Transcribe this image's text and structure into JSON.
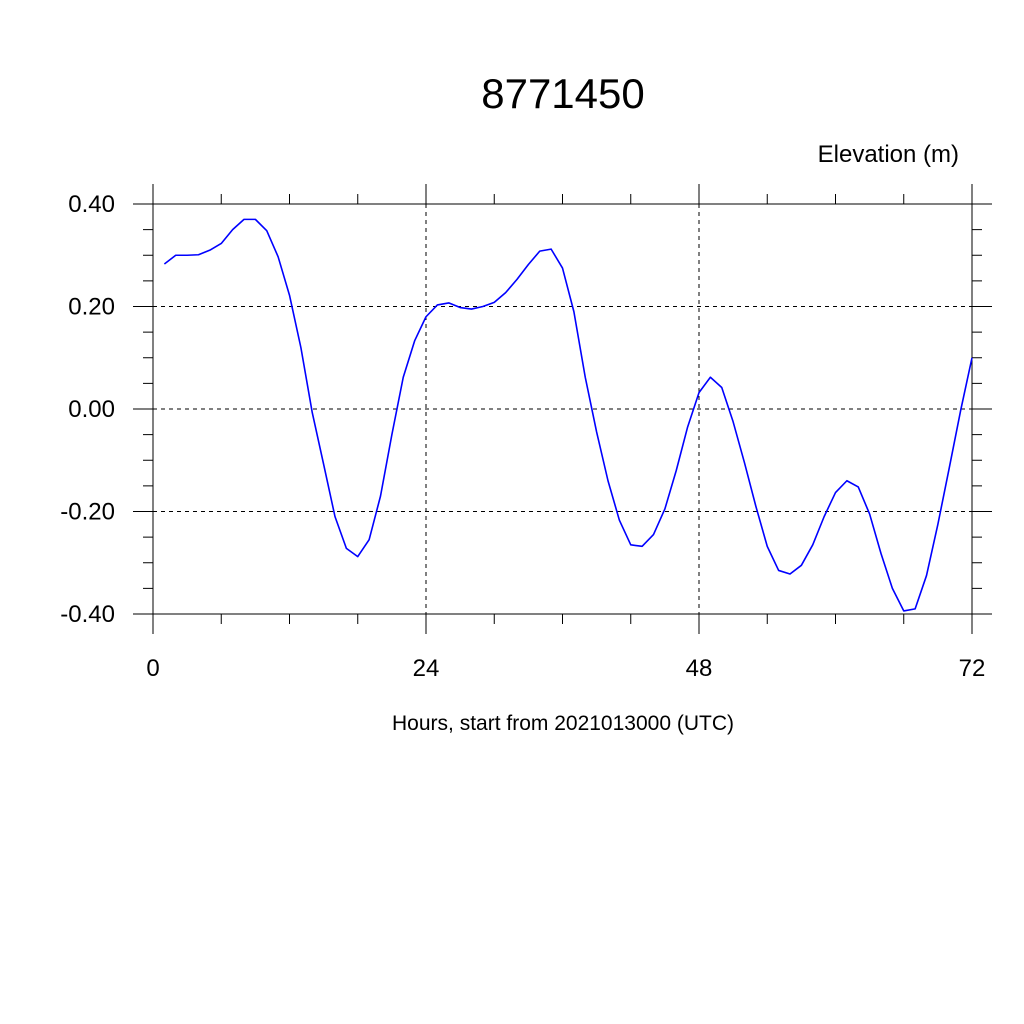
{
  "chart_data": {
    "type": "line",
    "title": "8771450",
    "ylabel": "Elevation (m)",
    "xlabel": "Hours, start from 2021013000 (UTC)",
    "xlim": [
      0,
      72
    ],
    "ylim": [
      -0.4,
      0.4
    ],
    "x_ticks": [
      0,
      24,
      48,
      72
    ],
    "x_tick_labels": [
      "0",
      "24",
      "48",
      "72"
    ],
    "y_ticks": [
      0.4,
      0.2,
      0.0,
      -0.2,
      -0.4
    ],
    "y_tick_labels": [
      "0.40",
      "0.20",
      "0.00",
      "-0.20",
      "-0.40"
    ],
    "x_minor_step": 6,
    "y_minor_step": 0.05,
    "grid": true,
    "series": [
      {
        "color": "#0000ff",
        "x": [
          1,
          2,
          3,
          4,
          5,
          6,
          7,
          8,
          9,
          10,
          11,
          12,
          13,
          14,
          15,
          16,
          17,
          18,
          19,
          20,
          21,
          22,
          23,
          24,
          25,
          26,
          27,
          28,
          29,
          30,
          31,
          32,
          33,
          34,
          35,
          36,
          37,
          38,
          39,
          40,
          41,
          42,
          43,
          44,
          45,
          46,
          47,
          48,
          49,
          50,
          51,
          52,
          53,
          54,
          55,
          56,
          57,
          58,
          59,
          60,
          61,
          62,
          63,
          64,
          65,
          66,
          67,
          68,
          69,
          70,
          71,
          72
        ],
        "y": [
          0.283,
          0.3,
          0.3,
          0.301,
          0.31,
          0.323,
          0.35,
          0.37,
          0.37,
          0.348,
          0.297,
          0.222,
          0.12,
          -0.007,
          -0.108,
          -0.21,
          -0.272,
          -0.288,
          -0.255,
          -0.17,
          -0.05,
          0.062,
          0.133,
          0.18,
          0.203,
          0.207,
          0.198,
          0.195,
          0.2,
          0.208,
          0.227,
          0.253,
          0.282,
          0.308,
          0.312,
          0.275,
          0.19,
          0.062,
          -0.045,
          -0.14,
          -0.217,
          -0.265,
          -0.268,
          -0.245,
          -0.195,
          -0.12,
          -0.035,
          0.032,
          0.062,
          0.042,
          -0.025,
          -0.105,
          -0.19,
          -0.268,
          -0.315,
          -0.322,
          -0.305,
          -0.265,
          -0.21,
          -0.163,
          -0.14,
          -0.152,
          -0.205,
          -0.282,
          -0.35,
          -0.394,
          -0.39,
          -0.325,
          -0.225,
          -0.115,
          -0.003,
          0.1
        ]
      }
    ]
  }
}
